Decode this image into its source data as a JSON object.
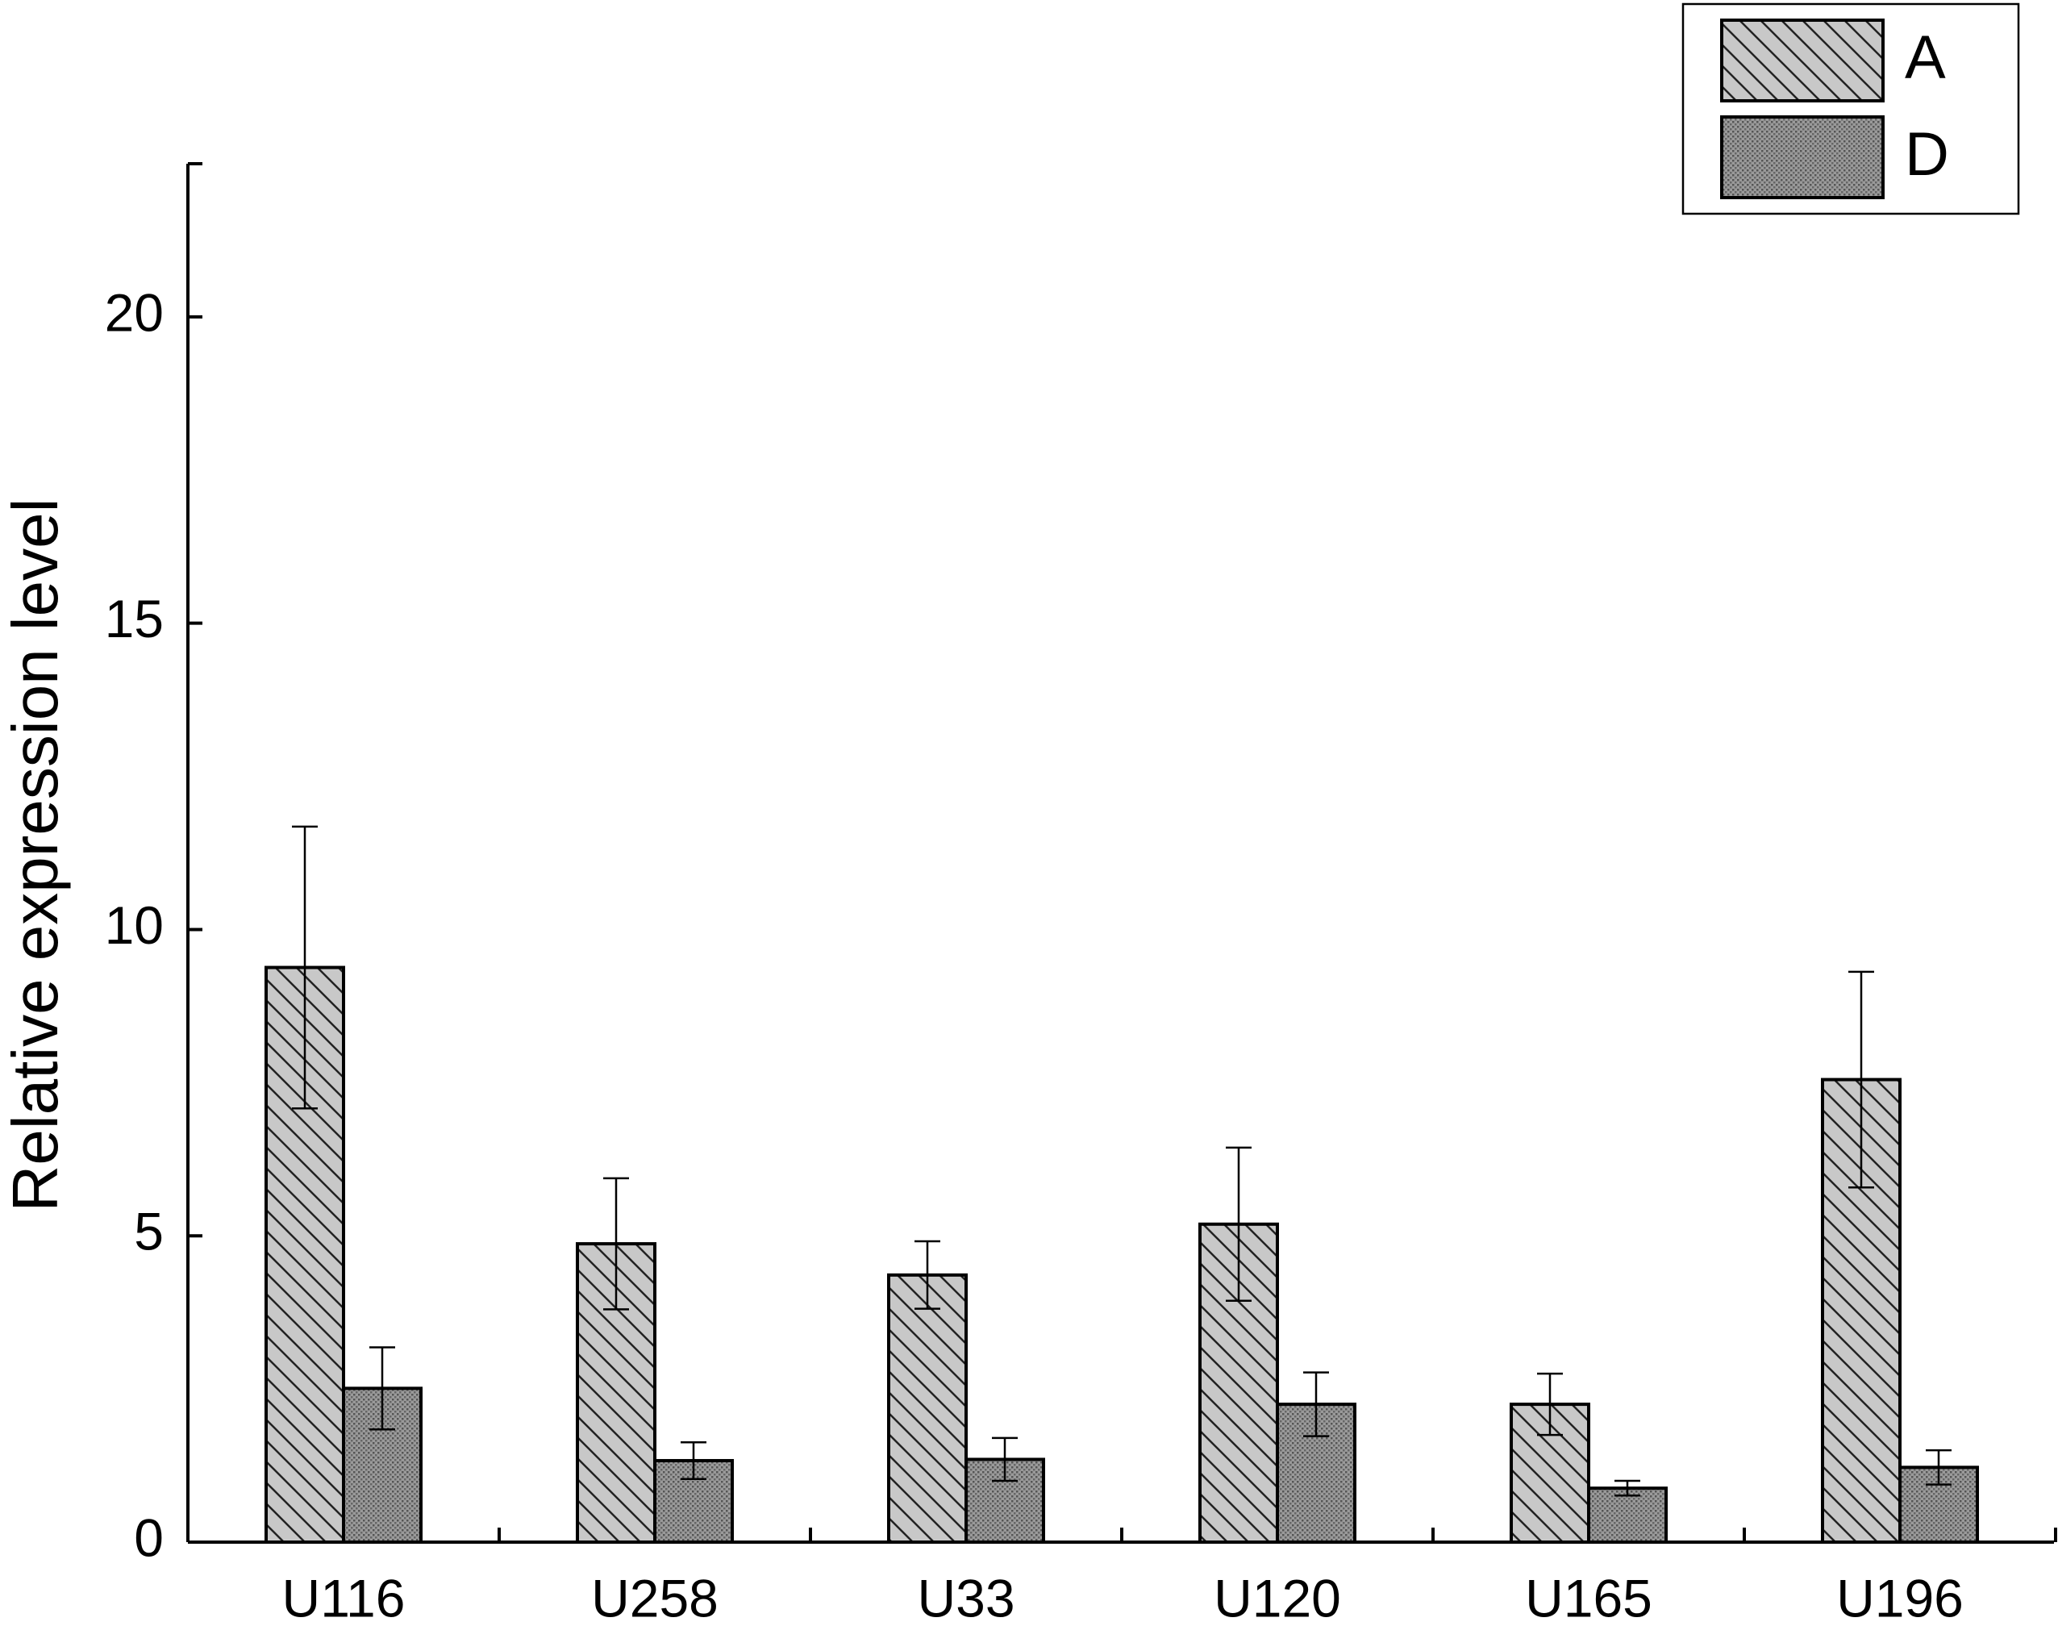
{
  "chart_data": {
    "type": "bar",
    "y_label": "Relative expression level",
    "categories": [
      "U116",
      "U258",
      "U33",
      "U120",
      "U165",
      "U196"
    ],
    "series": [
      {
        "name": "A",
        "color": "#c8c8c8",
        "pattern": "hatch",
        "values": [
          9.38,
          4.87,
          4.36,
          5.19,
          2.25,
          7.55
        ],
        "errors": [
          2.3,
          1.07,
          0.55,
          1.25,
          0.5,
          1.76
        ]
      },
      {
        "name": "D",
        "color": "#8c8c8c",
        "pattern": "dots",
        "values": [
          2.51,
          1.33,
          1.35,
          2.25,
          0.88,
          1.22
        ],
        "errors": [
          0.67,
          0.3,
          0.35,
          0.52,
          0.12,
          0.28
        ]
      }
    ],
    "ylim": [
      0,
      22.5
    ],
    "yticks": [
      0,
      5,
      10,
      15,
      20
    ],
    "grid": false,
    "legend": "upper right"
  }
}
